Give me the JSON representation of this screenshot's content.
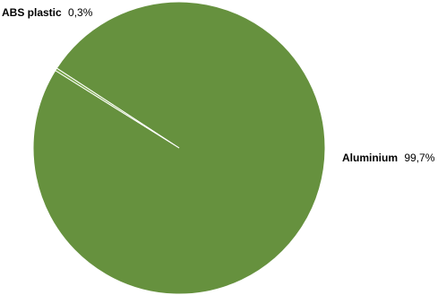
{
  "chart_data": {
    "type": "pie",
    "title": "",
    "categories": [
      "Aluminium",
      "ABS plastic"
    ],
    "values": [
      99.7,
      0.3
    ],
    "value_labels": [
      "99,7%",
      "0,3%"
    ],
    "unit": "%",
    "legend": "none",
    "colors": {
      "Aluminium": "#66913e",
      "ABS plastic": "#79a64b"
    },
    "slice_border": "#ffffff"
  }
}
